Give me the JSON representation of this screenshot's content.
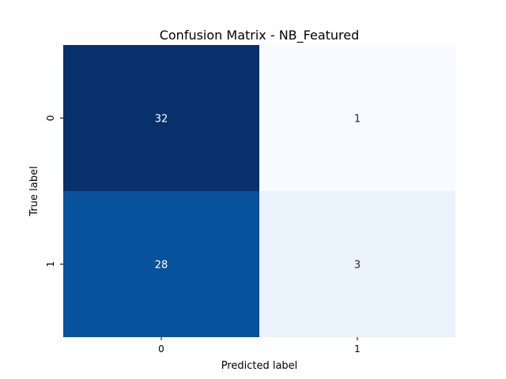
{
  "chart_data": {
    "type": "heatmap",
    "title": "Confusion Matrix - NB_Featured",
    "xlabel": "Predicted label",
    "ylabel": "True label",
    "x_categories": [
      "0",
      "1"
    ],
    "y_categories": [
      "0",
      "1"
    ],
    "matrix": [
      [
        32,
        1
      ],
      [
        28,
        3
      ]
    ],
    "colormap": "Blues",
    "colors": {
      "cell_00": "#08306b",
      "cell_01": "#f7fbff",
      "cell_10": "#08519c",
      "cell_11": "#eaf2fb",
      "text_light": "#ffffff",
      "text_dark": "#262626"
    }
  }
}
